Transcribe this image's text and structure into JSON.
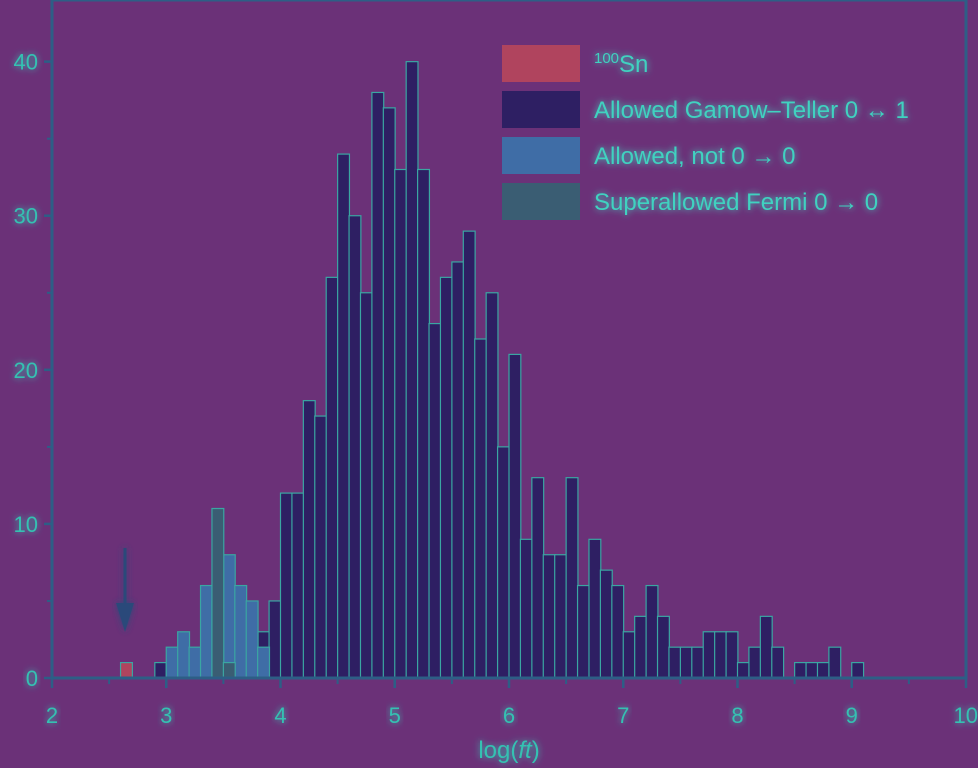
{
  "chart_data": {
    "type": "bar",
    "title": "",
    "xlabel": "log(ft)",
    "xlabel_prefix": "log(",
    "xlabel_italic": "ft",
    "xlabel_suffix": ")",
    "ylabel": "",
    "xlim": [
      2,
      10
    ],
    "ylim": [
      0,
      44
    ],
    "bin_width": 0.1,
    "x_ticks": [
      "2",
      "3",
      "4",
      "5",
      "6",
      "7",
      "8",
      "9",
      "10"
    ],
    "y_ticks": [
      "0",
      "10",
      "20",
      "30",
      "40"
    ],
    "legend_position": "top-right",
    "legend": [
      {
        "key": "sn100",
        "sup": "100",
        "text": "Sn",
        "color": "#b0445e"
      },
      {
        "key": "gt",
        "sup": "",
        "text": "Allowed Gamow–Teller 0 ↔ 1",
        "color": "#2e1f63"
      },
      {
        "key": "an",
        "sup": "",
        "text": "Allowed, not 0 → 0",
        "color": "#3f6da6"
      },
      {
        "key": "sf",
        "sup": "",
        "text": "Superallowed Fermi 0 → 0",
        "color": "#3a5d73"
      }
    ],
    "series": [
      {
        "key": "sn100",
        "color": "#b0445e",
        "x": [
          2.6
        ],
        "values": [
          1
        ]
      },
      {
        "key": "gt",
        "color": "#2e1f63",
        "x": [
          2.9,
          3.0,
          3.1,
          3.2,
          3.3,
          3.4,
          3.5,
          3.6,
          3.7,
          3.8,
          3.9,
          4.0,
          4.1,
          4.2,
          4.3,
          4.4,
          4.5,
          4.6,
          4.7,
          4.8,
          4.9,
          5.0,
          5.1,
          5.2,
          5.3,
          5.4,
          5.5,
          5.6,
          5.7,
          5.8,
          5.9,
          6.0,
          6.1,
          6.2,
          6.3,
          6.4,
          6.5,
          6.6,
          6.7,
          6.8,
          6.9,
          7.0,
          7.1,
          7.2,
          7.3,
          7.4,
          7.5,
          7.6,
          7.7,
          7.8,
          7.9,
          8.0,
          8.1,
          8.2,
          8.3,
          8.4,
          8.5,
          8.6,
          8.7,
          8.8,
          8.9,
          9.0
        ],
        "values": [
          1,
          1,
          1,
          0,
          1,
          1,
          1,
          0,
          1,
          3,
          5,
          12,
          12,
          18,
          17,
          26,
          34,
          30,
          25,
          38,
          37,
          33,
          40,
          33,
          23,
          26,
          27,
          29,
          22,
          25,
          15,
          21,
          9,
          13,
          8,
          8,
          13,
          6,
          9,
          7,
          6,
          3,
          4,
          6,
          4,
          2,
          2,
          2,
          3,
          3,
          3,
          1,
          2,
          4,
          2,
          0,
          1,
          1,
          1,
          2,
          0,
          1
        ]
      },
      {
        "key": "an",
        "color": "#3f6da6",
        "x": [
          3.0,
          3.1,
          3.2,
          3.3,
          3.4,
          3.5,
          3.6,
          3.7,
          3.8
        ],
        "values": [
          2,
          3,
          2,
          6,
          5,
          8,
          6,
          5,
          2
        ]
      },
      {
        "key": "sf",
        "color": "#3a5d73",
        "x": [
          3.4,
          3.5
        ],
        "values": [
          11,
          1
        ]
      }
    ]
  }
}
